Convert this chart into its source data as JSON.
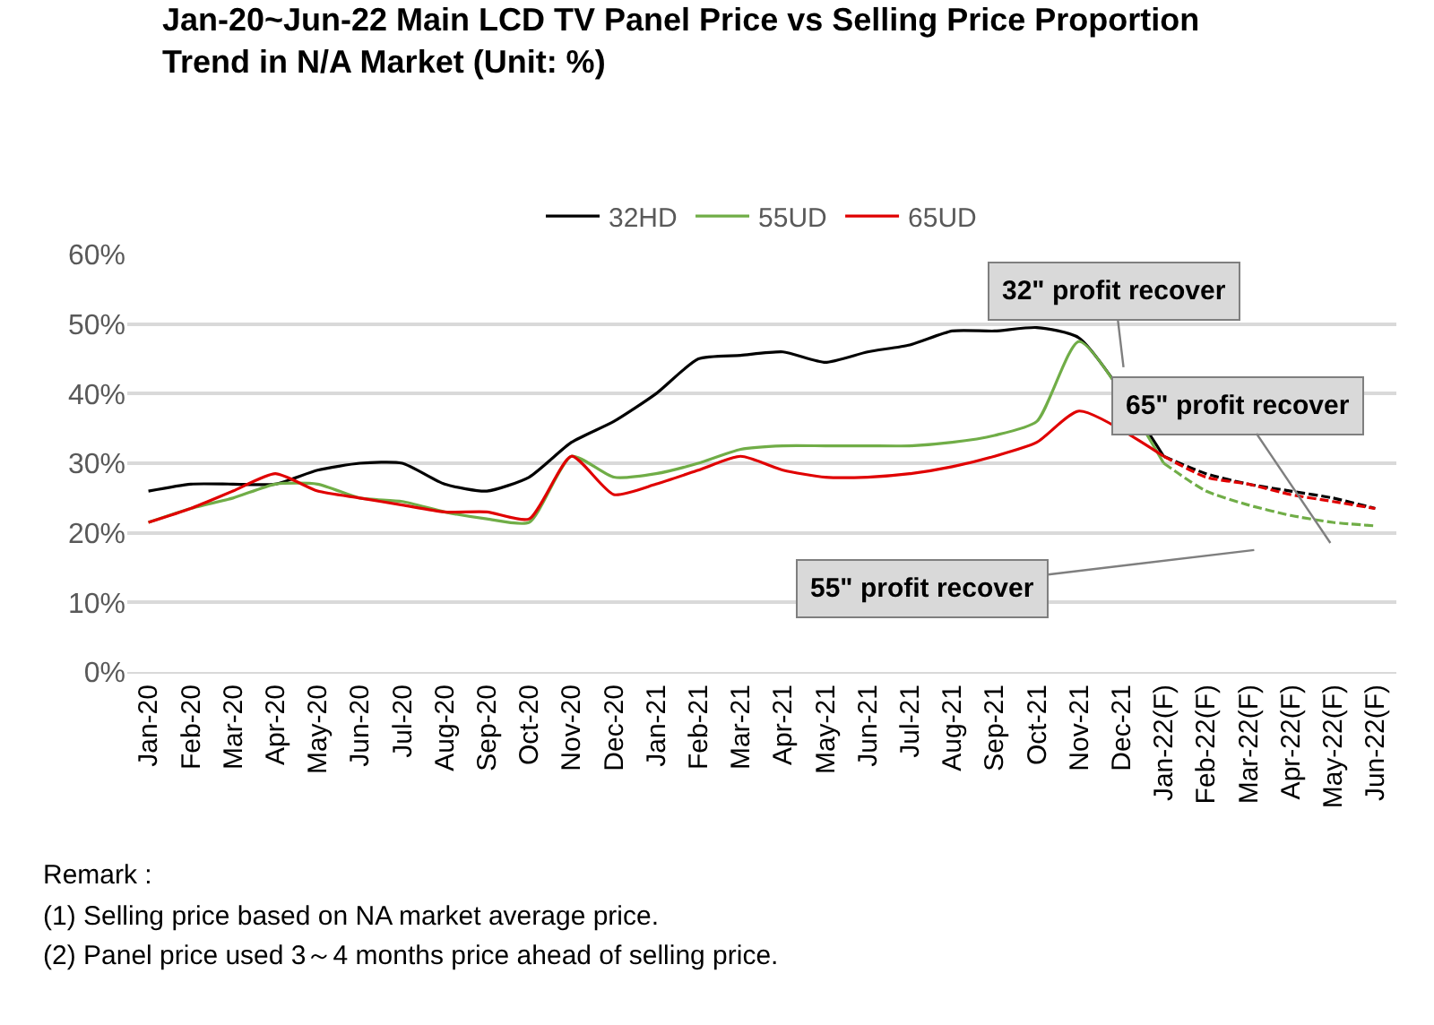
{
  "chart_data": {
    "type": "line",
    "title": "Jan-20~Jun-22 Main LCD TV Panel Price vs Selling Price Proportion\nTrend in N/A Market (Unit: %)",
    "categories": [
      "Jan-20",
      "Feb-20",
      "Mar-20",
      "Apr-20",
      "May-20",
      "Jun-20",
      "Jul-20",
      "Aug-20",
      "Sep-20",
      "Oct-20",
      "Nov-20",
      "Dec-20",
      "Jan-21",
      "Feb-21",
      "Mar-21",
      "Apr-21",
      "May-21",
      "Jun-21",
      "Jul-21",
      "Aug-21",
      "Sep-21",
      "Oct-21",
      "Nov-21",
      "Dec-21",
      "Jan-22(F)",
      "Feb-22(F)",
      "Mar-22(F)",
      "Apr-22(F)",
      "May-22(F)",
      "Jun-22(F)"
    ],
    "series": [
      {
        "name": "32HD",
        "color": "#000000",
        "line_style": "solid",
        "values": [
          26,
          27,
          27,
          27,
          29,
          30,
          30,
          27,
          26,
          28,
          33,
          36,
          40,
          45,
          45.5,
          46,
          44.5,
          46,
          47,
          49,
          49,
          49.5,
          48,
          null,
          31,
          null,
          null,
          null,
          null,
          null
        ]
      },
      {
        "name": "55UD",
        "color": "#70ad47",
        "line_style": "solid",
        "values": [
          21.5,
          23.5,
          25,
          27,
          27,
          25,
          24.5,
          23,
          22,
          21.5,
          31,
          28,
          28.5,
          30,
          32,
          32.5,
          32.5,
          32.5,
          32.5,
          33,
          34,
          36,
          47.5,
          null,
          30,
          null,
          null,
          null,
          null,
          null
        ]
      },
      {
        "name": "65UD",
        "color": "#e00000",
        "line_style": "solid",
        "values": [
          21.5,
          23.5,
          26,
          28.5,
          26,
          25,
          24,
          23,
          23,
          22,
          31,
          25.5,
          27,
          29,
          31,
          29,
          28,
          28,
          28.5,
          29.5,
          31,
          33,
          37.5,
          null,
          31,
          null,
          null,
          null,
          null,
          null
        ]
      },
      {
        "color": "#000000",
        "line_style": "dashed",
        "values": [
          null,
          null,
          null,
          null,
          null,
          null,
          null,
          null,
          null,
          null,
          null,
          null,
          null,
          null,
          null,
          null,
          null,
          null,
          null,
          null,
          null,
          null,
          null,
          null,
          31,
          28.5,
          27,
          26,
          25,
          23.5
        ]
      },
      {
        "color": "#70ad47",
        "line_style": "dashed",
        "values": [
          null,
          null,
          null,
          null,
          null,
          null,
          null,
          null,
          null,
          null,
          null,
          null,
          null,
          null,
          null,
          null,
          null,
          null,
          null,
          null,
          null,
          null,
          null,
          null,
          30,
          26,
          24,
          22.5,
          21.5,
          21
        ]
      },
      {
        "color": "#e00000",
        "line_style": "dashed",
        "values": [
          null,
          null,
          null,
          null,
          null,
          null,
          null,
          null,
          null,
          null,
          null,
          null,
          null,
          null,
          null,
          null,
          null,
          null,
          null,
          null,
          null,
          null,
          null,
          null,
          31,
          28,
          27,
          25.5,
          24.5,
          23.5
        ]
      }
    ],
    "ylim": [
      0,
      60
    ],
    "yticks": [
      {
        "value": 0,
        "label": "0%"
      },
      {
        "value": 10,
        "label": "10%"
      },
      {
        "value": 20,
        "label": "20%"
      },
      {
        "value": 30,
        "label": "30%"
      },
      {
        "value": 40,
        "label": "40%"
      },
      {
        "value": 50,
        "label": "50%"
      },
      {
        "value": 60,
        "label": "60%"
      }
    ],
    "grid": "y",
    "legend": "top",
    "marker": "none",
    "annotations": [
      "32\" profit recover",
      "65\" profit recover",
      "55\" profit recover",
      "Remark :",
      "(1) Selling price based on NA market average price.",
      "(2) Panel price used 3～4 months price ahead of selling price."
    ]
  }
}
